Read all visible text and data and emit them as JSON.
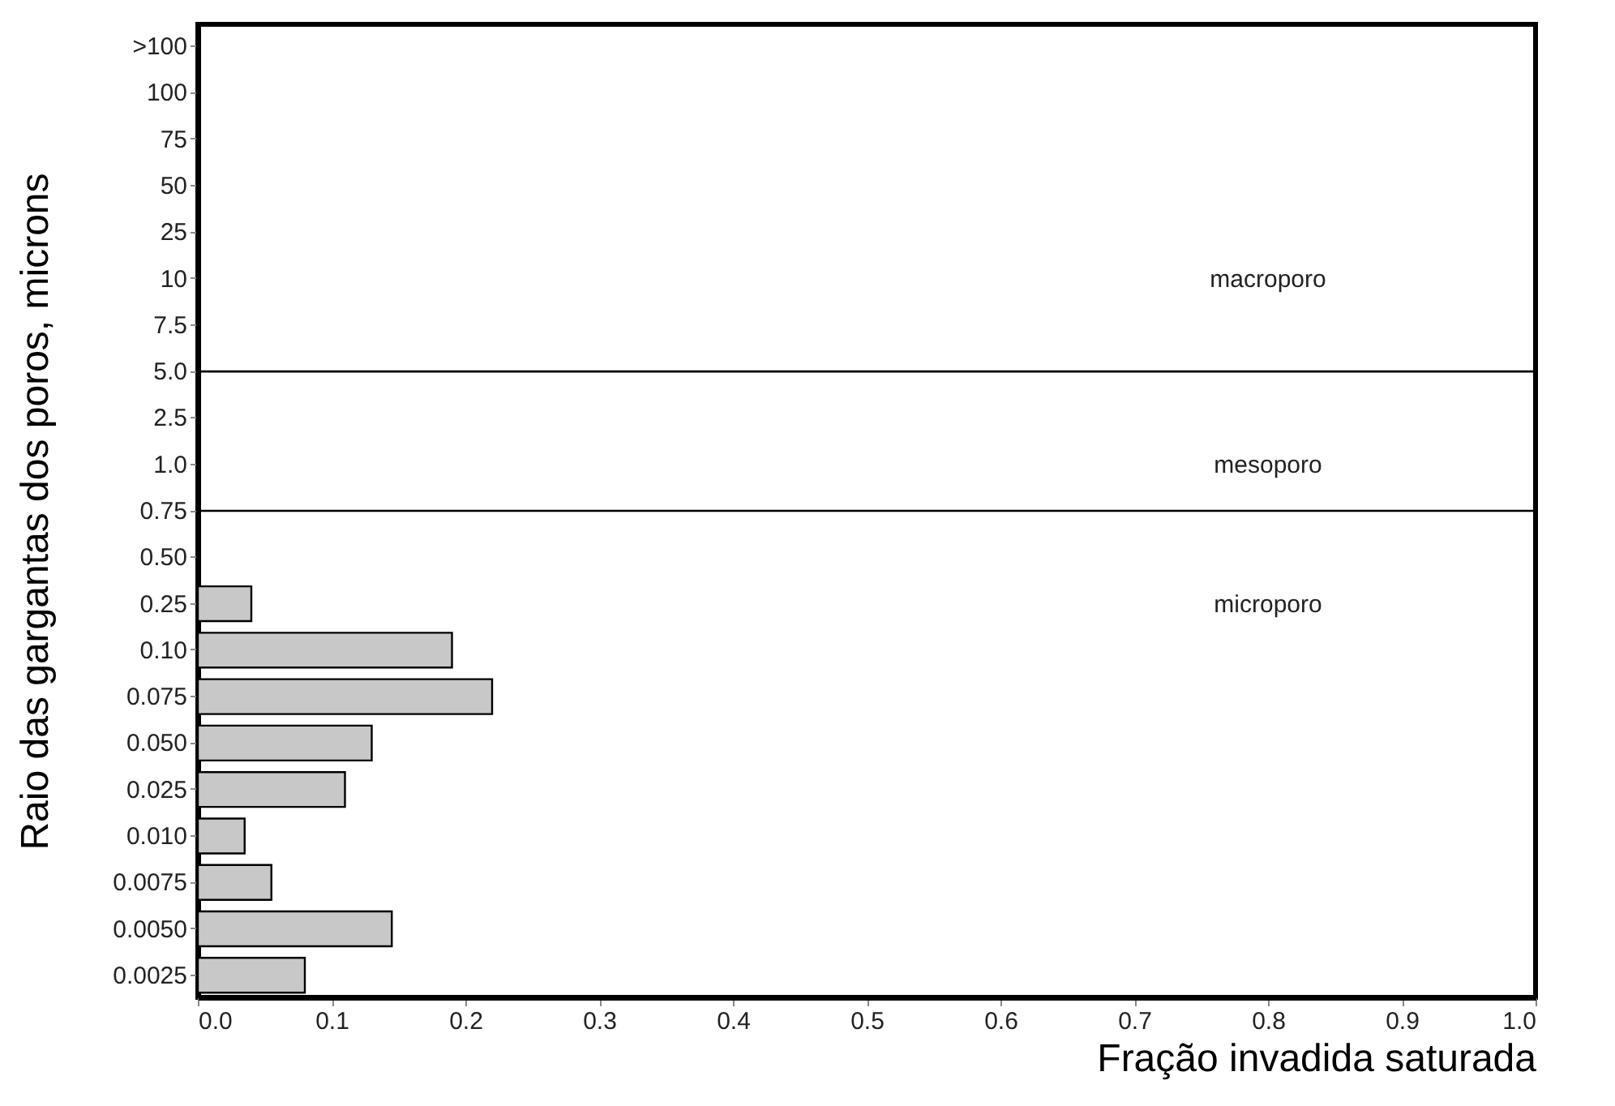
{
  "chart_data": {
    "type": "bar",
    "orientation": "horizontal",
    "xlabel": "Fração invadida saturada",
    "ylabel": "Raio das gargantas dos poros, microns",
    "categories": [
      ">100",
      "100",
      "75",
      "50",
      "25",
      "10",
      "7.5",
      "5.0",
      "2.5",
      "1.0",
      "0.75",
      "0.50",
      "0.25",
      "0.10",
      "0.075",
      "0.050",
      "0.025",
      "0.010",
      "0.0075",
      "0.0050",
      "0.0025"
    ],
    "values": [
      null,
      null,
      null,
      null,
      null,
      null,
      null,
      null,
      null,
      null,
      null,
      null,
      0.04,
      0.19,
      0.22,
      0.13,
      0.11,
      0.035,
      0.055,
      0.145,
      0.08
    ],
    "color": "#c8c8c8",
    "xlim": [
      0,
      1
    ],
    "xticks": [
      {
        "value": 0,
        "label": "0.0"
      },
      0.1,
      0.2,
      0.3,
      0.4,
      0.5,
      0.6,
      0.7,
      0.8,
      0.9,
      {
        "value": 1,
        "label": "1.0"
      }
    ],
    "grid": false,
    "ref_lines": [
      {
        "axis": "y",
        "value": "5.0",
        "label": null,
        "color": "#000000"
      },
      {
        "axis": "y",
        "value": "0.75",
        "label": null,
        "color": "#000000"
      }
    ],
    "annotations": [
      "macroporo",
      "mesoporo",
      "microporo"
    ]
  }
}
